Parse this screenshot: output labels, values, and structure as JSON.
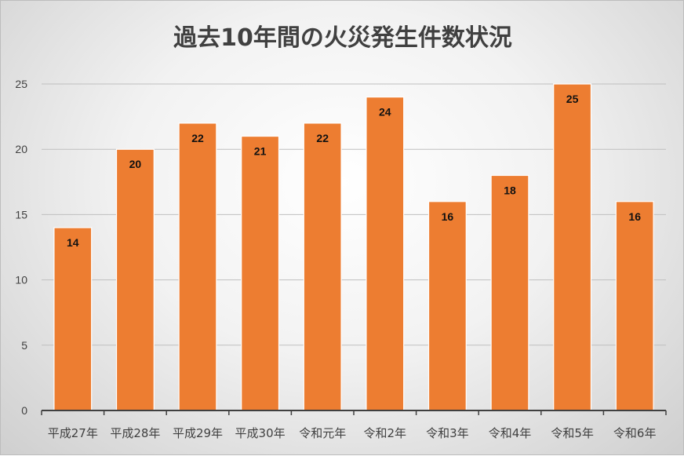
{
  "chart_data": {
    "type": "bar",
    "title": "過去10年間の火災発生件数状況",
    "xlabel": "",
    "ylabel": "",
    "categories": [
      "平成27年",
      "平成28年",
      "平成29年",
      "平成30年",
      "令和元年",
      "令和2年",
      "令和3年",
      "令和4年",
      "令和5年",
      "令和6年"
    ],
    "series": [
      {
        "values": [
          14,
          20,
          22,
          21,
          22,
          24,
          16,
          18,
          25,
          16
        ]
      }
    ],
    "ylim": [
      0,
      25
    ],
    "yticks": [
      "0",
      "5",
      "10",
      "15",
      "20",
      "25"
    ],
    "grid": true,
    "legend": "none",
    "data_labels": [
      "14",
      "20",
      "22",
      "21",
      "22",
      "24",
      "16",
      "18",
      "25",
      "16"
    ],
    "bar_color": "#ED7D31"
  }
}
